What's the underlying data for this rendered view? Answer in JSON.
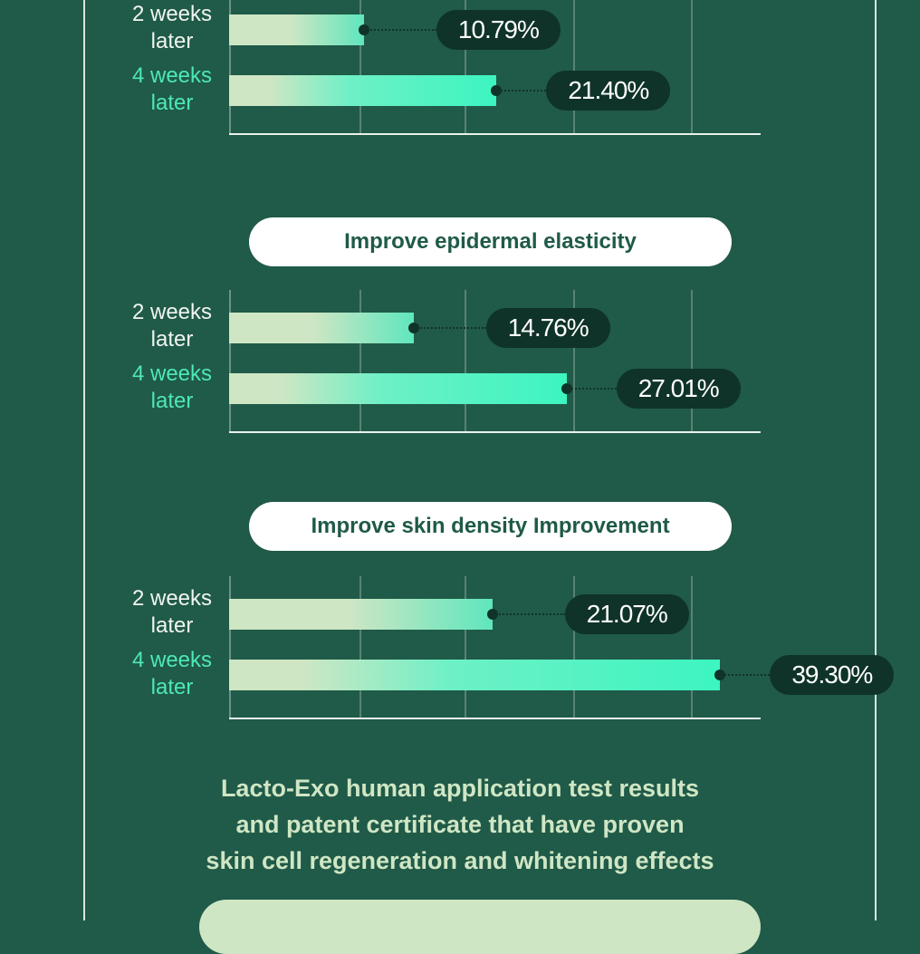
{
  "chart_data": [
    {
      "type": "bar",
      "title": "",
      "categories": [
        "2 weeks later",
        "4 weeks later"
      ],
      "values": [
        10.79,
        21.4
      ],
      "unit": "%"
    },
    {
      "type": "bar",
      "title": "Improve epidermal elasticity",
      "categories": [
        "2 weeks later",
        "4 weeks later"
      ],
      "values": [
        14.76,
        27.01
      ],
      "unit": "%"
    },
    {
      "type": "bar",
      "title": "Improve skin density Improvement",
      "categories": [
        "2 weeks later",
        "4 weeks later"
      ],
      "values": [
        21.07,
        39.3
      ],
      "unit": "%"
    }
  ],
  "labels": {
    "w2a": "2 weeks",
    "w2b": "later",
    "w4a": "4 weeks",
    "w4b": "later"
  },
  "caption": [
    "Lacto-Exo human application test results",
    "and patent certificate that have proven",
    "skin cell regeneration and whitening effects"
  ]
}
